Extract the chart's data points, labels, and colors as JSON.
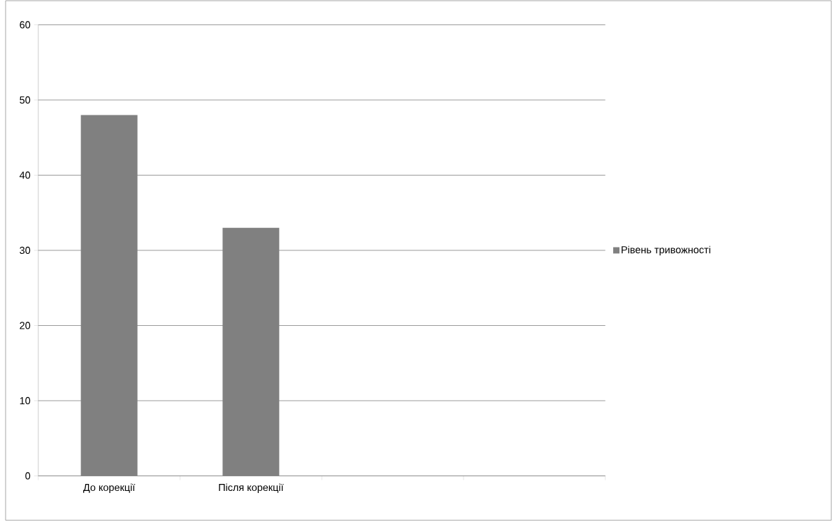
{
  "chart_data": {
    "type": "bar",
    "categories": [
      "До корекції",
      "Після корекції",
      null,
      null
    ],
    "series": [
      {
        "name": "Рівень тривожності",
        "color": "#808080",
        "values": [
          48,
          33,
          null,
          null
        ]
      }
    ],
    "ylim": [
      0,
      60
    ],
    "yticks": [
      0,
      10,
      20,
      30,
      40,
      50,
      60
    ],
    "grid": "y",
    "legend": "right"
  }
}
